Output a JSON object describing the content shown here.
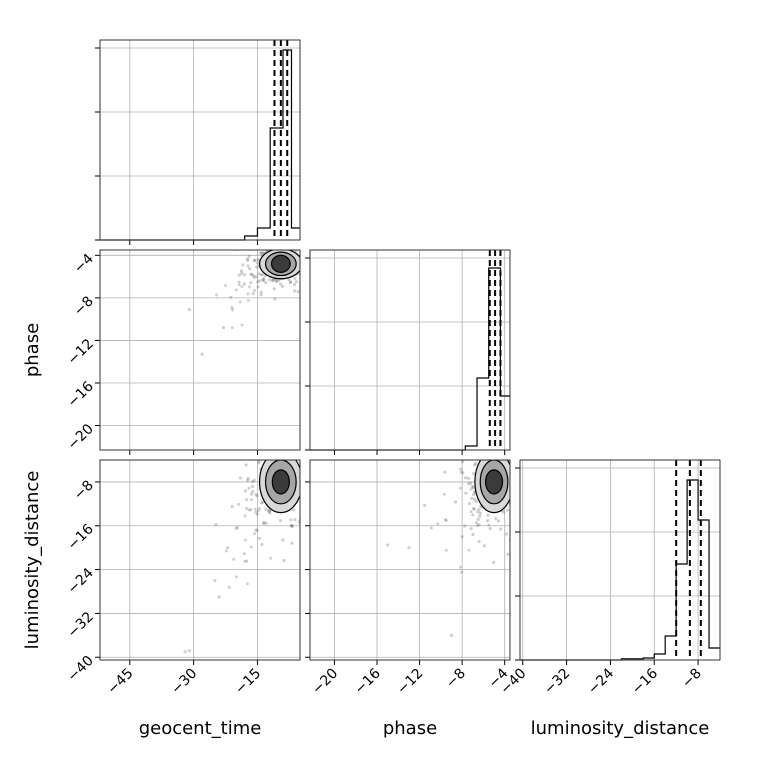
{
  "chart_data": {
    "type": "corner",
    "parameters": [
      "geocent_time",
      "phase",
      "luminosity_distance"
    ],
    "axis_ranges": {
      "geocent_time": [
        -52,
        -5
      ],
      "phase": [
        -22.3,
        -3.5
      ],
      "luminosity_distance": [
        -40.5,
        -4
      ]
    },
    "ticks": {
      "geocent_time": [
        -45,
        -30,
        -15
      ],
      "phase": [
        -20,
        -16,
        -12,
        -8,
        -4
      ],
      "luminosity_distance": [
        -40,
        -32,
        -24,
        -16,
        -8
      ]
    },
    "tick_labels": {
      "geocent_time": [
        "−45",
        "−30",
        "−15"
      ],
      "phase": [
        "−20",
        "−16",
        "−12",
        "−8",
        "−4"
      ],
      "luminosity_distance": [
        "−40",
        "−32",
        "−24",
        "−16",
        "−8"
      ]
    },
    "diagonal_histograms": [
      {
        "parameter": "geocent_time",
        "bin_edges": [
          -52,
          -18,
          -15,
          -12,
          -9,
          -7,
          -5
        ],
        "counts": [
          0,
          0.02,
          0.06,
          0.56,
          0.95,
          0.06
        ],
        "quantiles": [
          -11.0,
          -9.5,
          -8.0
        ]
      },
      {
        "parameter": "phase",
        "bin_edges": [
          -22.3,
          -7.7,
          -6.6,
          -5.5,
          -4.4,
          -3.5
        ],
        "counts": [
          0,
          0.02,
          0.36,
          0.91,
          0.27
        ],
        "quantiles": [
          -5.4,
          -4.9,
          -4.4
        ]
      },
      {
        "parameter": "luminosity_distance",
        "bin_edges": [
          -40.5,
          -22,
          -18,
          -16,
          -14,
          -12,
          -10,
          -8,
          -6,
          -4
        ],
        "counts": [
          0,
          0.006,
          0.01,
          0.03,
          0.12,
          0.48,
          0.9,
          0.7,
          0.06
        ],
        "quantiles": [
          -12.0,
          -9.5,
          -7.5
        ]
      }
    ],
    "pair_plots": [
      {
        "x": "geocent_time",
        "y": "phase",
        "center": [
          -9.5,
          -4.8
        ],
        "contour_levels": [
          [
            2.2,
            0.8
          ],
          [
            3.6,
            1.1
          ],
          [
            5.0,
            1.4
          ]
        ],
        "outliers": [
          [
            -31,
            -9.1
          ],
          [
            -23,
            -10.8
          ],
          [
            -21,
            -8.9
          ],
          [
            -16,
            -7.6
          ],
          [
            -28,
            -13.3
          ]
        ]
      },
      {
        "x": "geocent_time",
        "y": "luminosity_distance",
        "center": [
          -9.5,
          -8.0
        ],
        "contour_levels": [
          [
            2.0,
            2.2
          ],
          [
            3.6,
            4.0
          ],
          [
            5.0,
            5.6
          ]
        ],
        "outliers": [
          [
            -32,
            -39.0
          ],
          [
            -25,
            -26.0
          ],
          [
            -24,
            -29.0
          ],
          [
            -22,
            -20.0
          ],
          [
            -20,
            -16.5
          ],
          [
            -31,
            -38.8
          ]
        ]
      },
      {
        "x": "phase",
        "y": "luminosity_distance",
        "center": [
          -5.0,
          -8.0
        ],
        "contour_levels": [
          [
            0.8,
            2.2
          ],
          [
            1.3,
            4.0
          ],
          [
            1.8,
            5.6
          ]
        ],
        "outliers": [
          [
            -13,
            -20.0
          ],
          [
            -9,
            -36.0
          ],
          [
            -8,
            -18.0
          ],
          [
            -7,
            -14.0
          ],
          [
            -15,
            -19.5
          ]
        ]
      }
    ],
    "grid": true,
    "xlabel_bottom": [
      "geocent_time",
      "phase",
      "luminosity_distance"
    ],
    "ylabel_left": [
      "phase",
      "luminosity_distance"
    ]
  }
}
